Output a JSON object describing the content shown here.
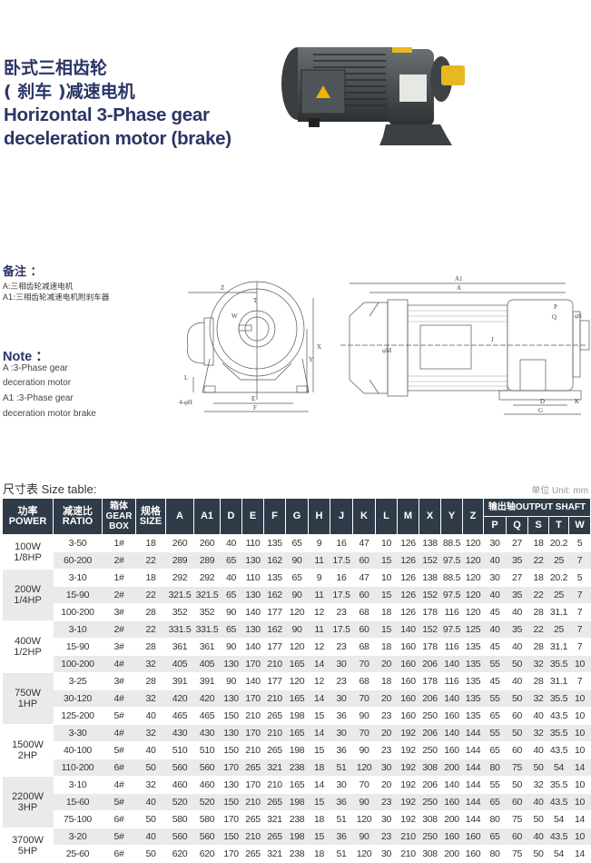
{
  "title": {
    "cn_line1": "卧式三相齿轮",
    "cn_line2": "( 刹车 )减速电机",
    "en_line1": "Horizontal 3-Phase gear",
    "en_line2": "deceleration motor (brake)"
  },
  "remarks": {
    "heading": "备注 ：",
    "lines": [
      "A:三相齿轮减速电机",
      "A1:三相齿轮减速电机附刹车器"
    ]
  },
  "note": {
    "heading": "Note ：",
    "lines": [
      "A :3-Phase gear",
      "deceration motor",
      "A1 :3-Phase gear",
      "deceration motor brake"
    ]
  },
  "diagram_front": {
    "labels": {
      "Z": "Z",
      "T": "T",
      "W": "W",
      "X": "X",
      "Y": "Y",
      "L": "L",
      "E": "E",
      "F": "F",
      "H": "4-φH"
    }
  },
  "diagram_side": {
    "labels": {
      "A1": "A1",
      "A": "A",
      "P": "P",
      "Q": "Q",
      "S": "φS",
      "J": "J",
      "M": "φM",
      "D": "D",
      "G": "G",
      "K": "K"
    }
  },
  "size_table": {
    "title": "尺寸表 Size table:",
    "unit": "单位 Unit: mm",
    "headers": {
      "power": [
        "功率",
        "POWER"
      ],
      "ratio": [
        "减速比",
        "RATIO"
      ],
      "gearbox": [
        "箱体",
        "GEAR",
        "BOX"
      ],
      "size": [
        "规格",
        "SIZE"
      ],
      "dims": [
        "A",
        "A1",
        "D",
        "E",
        "F",
        "G",
        "H",
        "J",
        "K",
        "L",
        "M",
        "X",
        "Y",
        "Z"
      ],
      "shaft": "输出轴OUTPUT SHAFT",
      "shaft_cols": [
        "P",
        "Q",
        "S",
        "T",
        "W"
      ]
    },
    "groups": [
      {
        "power": [
          "100W",
          "1/8HP"
        ],
        "rows": [
          [
            "3-50",
            "1#",
            "18",
            "260",
            "260",
            "40",
            "110",
            "135",
            "65",
            "9",
            "16",
            "47",
            "10",
            "126",
            "138",
            "88.5",
            "120",
            "30",
            "27",
            "18",
            "20.2",
            "5"
          ],
          [
            "60-200",
            "2#",
            "22",
            "289",
            "289",
            "65",
            "130",
            "162",
            "90",
            "11",
            "17.5",
            "60",
            "15",
            "126",
            "152",
            "97.5",
            "120",
            "40",
            "35",
            "22",
            "25",
            "7"
          ]
        ]
      },
      {
        "power": [
          "200W",
          "1/4HP"
        ],
        "rows": [
          [
            "3-10",
            "1#",
            "18",
            "292",
            "292",
            "40",
            "110",
            "135",
            "65",
            "9",
            "16",
            "47",
            "10",
            "126",
            "138",
            "88.5",
            "120",
            "30",
            "27",
            "18",
            "20.2",
            "5"
          ],
          [
            "15-90",
            "2#",
            "22",
            "321.5",
            "321.5",
            "65",
            "130",
            "162",
            "90",
            "11",
            "17.5",
            "60",
            "15",
            "126",
            "152",
            "97.5",
            "120",
            "40",
            "35",
            "22",
            "25",
            "7"
          ],
          [
            "100-200",
            "3#",
            "28",
            "352",
            "352",
            "90",
            "140",
            "177",
            "120",
            "12",
            "23",
            "68",
            "18",
            "126",
            "178",
            "116",
            "120",
            "45",
            "40",
            "28",
            "31.1",
            "7"
          ]
        ]
      },
      {
        "power": [
          "400W",
          "1/2HP"
        ],
        "rows": [
          [
            "3-10",
            "2#",
            "22",
            "331.5",
            "331.5",
            "65",
            "130",
            "162",
            "90",
            "11",
            "17.5",
            "60",
            "15",
            "140",
            "152",
            "97.5",
            "125",
            "40",
            "35",
            "22",
            "25",
            "7"
          ],
          [
            "15-90",
            "3#",
            "28",
            "361",
            "361",
            "90",
            "140",
            "177",
            "120",
            "12",
            "23",
            "68",
            "18",
            "160",
            "178",
            "116",
            "135",
            "45",
            "40",
            "28",
            "31.1",
            "7"
          ],
          [
            "100-200",
            "4#",
            "32",
            "405",
            "405",
            "130",
            "170",
            "210",
            "165",
            "14",
            "30",
            "70",
            "20",
            "160",
            "206",
            "140",
            "135",
            "55",
            "50",
            "32",
            "35.5",
            "10"
          ]
        ]
      },
      {
        "power": [
          "750W",
          "1HP"
        ],
        "rows": [
          [
            "3-25",
            "3#",
            "28",
            "391",
            "391",
            "90",
            "140",
            "177",
            "120",
            "12",
            "23",
            "68",
            "18",
            "160",
            "178",
            "116",
            "135",
            "45",
            "40",
            "28",
            "31.1",
            "7"
          ],
          [
            "30-120",
            "4#",
            "32",
            "420",
            "420",
            "130",
            "170",
            "210",
            "165",
            "14",
            "30",
            "70",
            "20",
            "160",
            "206",
            "140",
            "135",
            "55",
            "50",
            "32",
            "35.5",
            "10"
          ],
          [
            "125-200",
            "5#",
            "40",
            "465",
            "465",
            "150",
            "210",
            "265",
            "198",
            "15",
            "36",
            "90",
            "23",
            "160",
            "250",
            "160",
            "135",
            "65",
            "60",
            "40",
            "43.5",
            "10"
          ]
        ]
      },
      {
        "power": [
          "1500W",
          "2HP"
        ],
        "rows": [
          [
            "3-30",
            "4#",
            "32",
            "430",
            "430",
            "130",
            "170",
            "210",
            "165",
            "14",
            "30",
            "70",
            "20",
            "192",
            "206",
            "140",
            "144",
            "55",
            "50",
            "32",
            "35.5",
            "10"
          ],
          [
            "40-100",
            "5#",
            "40",
            "510",
            "510",
            "150",
            "210",
            "265",
            "198",
            "15",
            "36",
            "90",
            "23",
            "192",
            "250",
            "160",
            "144",
            "65",
            "60",
            "40",
            "43.5",
            "10"
          ],
          [
            "110-200",
            "6#",
            "50",
            "560",
            "560",
            "170",
            "265",
            "321",
            "238",
            "18",
            "51",
            "120",
            "30",
            "192",
            "308",
            "200",
            "144",
            "80",
            "75",
            "50",
            "54",
            "14"
          ]
        ]
      },
      {
        "power": [
          "2200W",
          "3HP"
        ],
        "rows": [
          [
            "3-10",
            "4#",
            "32",
            "460",
            "460",
            "130",
            "170",
            "210",
            "165",
            "14",
            "30",
            "70",
            "20",
            "192",
            "206",
            "140",
            "144",
            "55",
            "50",
            "32",
            "35.5",
            "10"
          ],
          [
            "15-60",
            "5#",
            "40",
            "520",
            "520",
            "150",
            "210",
            "265",
            "198",
            "15",
            "36",
            "90",
            "23",
            "192",
            "250",
            "160",
            "144",
            "65",
            "60",
            "40",
            "43.5",
            "10"
          ],
          [
            "75-100",
            "6#",
            "50",
            "580",
            "580",
            "170",
            "265",
            "321",
            "238",
            "18",
            "51",
            "120",
            "30",
            "192",
            "308",
            "200",
            "144",
            "80",
            "75",
            "50",
            "54",
            "14"
          ]
        ]
      },
      {
        "power": [
          "3700W",
          "5HP"
        ],
        "rows": [
          [
            "3-20",
            "5#",
            "40",
            "560",
            "560",
            "150",
            "210",
            "265",
            "198",
            "15",
            "36",
            "90",
            "23",
            "210",
            "250",
            "160",
            "160",
            "65",
            "60",
            "40",
            "43.5",
            "10"
          ],
          [
            "25-60",
            "6#",
            "50",
            "620",
            "620",
            "170",
            "265",
            "321",
            "238",
            "18",
            "51",
            "120",
            "30",
            "210",
            "308",
            "200",
            "160",
            "80",
            "75",
            "50",
            "54",
            "14"
          ]
        ]
      }
    ]
  },
  "colors": {
    "title": "#2b3566",
    "header_bg": "#2f3b48",
    "stripe": "#e8ebe9",
    "motor_body": "#4a4e50",
    "shaft": "#e8b820"
  }
}
